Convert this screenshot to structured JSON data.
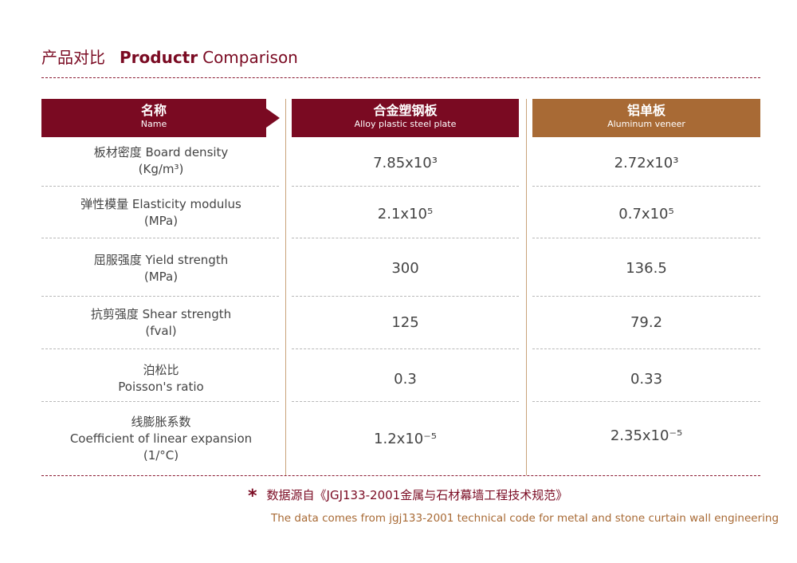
{
  "title": {
    "cn": "产品对比",
    "en_bold": "Productr",
    "en_light": "Comparison"
  },
  "headers": {
    "name": {
      "cn": "名称",
      "en": "Name"
    },
    "steel": {
      "cn": "合金塑钢板",
      "en": "Alloy plastic steel plate"
    },
    "aluminum": {
      "cn": "铝单板",
      "en": "Aluminum veneer"
    }
  },
  "rows": [
    {
      "name_line1": "板材密度 Board density",
      "name_line2": "(Kg/m³)",
      "name_line3": "",
      "steel": "7.85x10³",
      "aluminum": "2.72x10³"
    },
    {
      "name_line1": "弹性模量 Elasticity modulus",
      "name_line2": "(MPa)",
      "name_line3": "",
      "steel": "2.1x10⁵",
      "aluminum": "0.7x10⁵"
    },
    {
      "name_line1": "屈服强度 Yield strength",
      "name_line2": "(MPa)",
      "name_line3": "",
      "steel": "300",
      "aluminum": "136.5"
    },
    {
      "name_line1": "抗剪强度 Shear strength",
      "name_line2": "(fval)",
      "name_line3": "",
      "steel": "125",
      "aluminum": "79.2"
    },
    {
      "name_line1": "泊松比",
      "name_line2": "Poisson's ratio",
      "name_line3": "",
      "steel": "0.3",
      "aluminum": "0.33"
    },
    {
      "name_line1": "线膨胀系数",
      "name_line2": "Coefficient of linear expansion",
      "name_line3": "(1/°C)",
      "steel": "1.2x10⁻⁵",
      "aluminum": "2.35x10⁻⁵"
    }
  ],
  "footnote": {
    "star": "*",
    "cn": "数据源自《JGJ133-2001金属与石材幕墙工程技术规范》",
    "en": "The data comes from jgj133-2001 technical code for metal and stone curtain wall engineering"
  }
}
